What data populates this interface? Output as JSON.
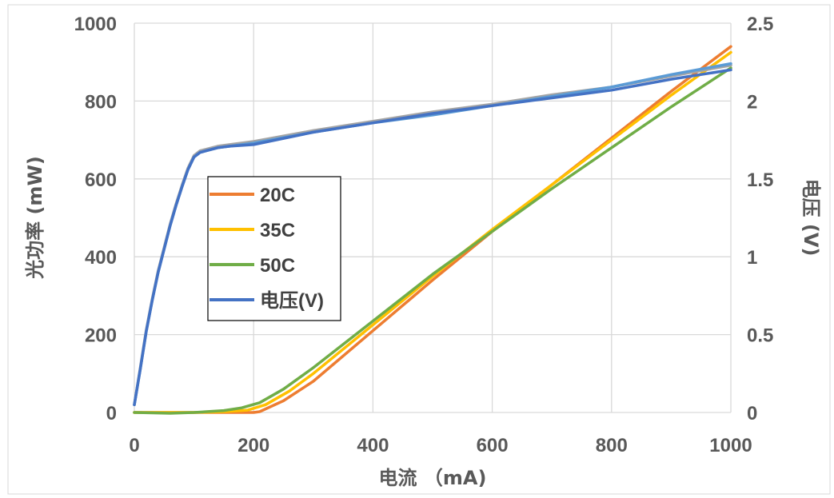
{
  "chart_data": {
    "type": "line",
    "xlabel": "电流 （mA)",
    "ylabel": "光功率 (mW)",
    "y2label": "电压 (V)",
    "xlim": [
      0,
      1000
    ],
    "ylim": [
      0,
      1000
    ],
    "y2lim": [
      0,
      2.5
    ],
    "xticks": [
      "0",
      "200",
      "400",
      "600",
      "800",
      "1000"
    ],
    "yticks": [
      "0",
      "200",
      "400",
      "600",
      "800",
      "1000"
    ],
    "y2ticks": [
      "0",
      "0.5",
      "1",
      "1.5",
      "2",
      "2.5"
    ],
    "grid": true,
    "legend_position": "center-left",
    "series": [
      {
        "name": "20C",
        "axis": "left",
        "color": "#ED7D31",
        "x": [
          0,
          200,
          210,
          250,
          300,
          400,
          500,
          600,
          700,
          800,
          900,
          1000
        ],
        "y": [
          0,
          0,
          2,
          30,
          80,
          210,
          340,
          465,
          585,
          705,
          825,
          940
        ]
      },
      {
        "name": "35C",
        "axis": "left",
        "color": "#FFC000",
        "x": [
          0,
          100,
          150,
          190,
          220,
          260,
          300,
          400,
          500,
          600,
          700,
          800,
          900,
          1000
        ],
        "y": [
          0,
          0,
          2,
          6,
          20,
          55,
          100,
          225,
          350,
          470,
          585,
          700,
          815,
          925
        ]
      },
      {
        "name": "50C",
        "axis": "left",
        "color": "#70AD47",
        "x": [
          0,
          60,
          100,
          150,
          180,
          210,
          250,
          300,
          400,
          500,
          600,
          700,
          800,
          900,
          1000
        ],
        "y": [
          0,
          -2,
          0,
          5,
          12,
          25,
          60,
          115,
          235,
          355,
          465,
          575,
          680,
          785,
          885
        ]
      },
      {
        "name": "电压(V)",
        "axis": "right",
        "color": "#4472C4",
        "x": [
          0,
          10,
          20,
          30,
          40,
          50,
          60,
          70,
          80,
          90,
          100,
          110,
          120,
          140,
          160,
          200,
          300,
          400,
          500,
          600,
          700,
          800,
          900,
          1000
        ],
        "y": [
          0.05,
          0.28,
          0.52,
          0.72,
          0.9,
          1.05,
          1.2,
          1.33,
          1.45,
          1.56,
          1.64,
          1.67,
          1.68,
          1.7,
          1.71,
          1.72,
          1.8,
          1.86,
          1.92,
          1.97,
          2.02,
          2.07,
          2.14,
          2.2
        ]
      }
    ],
    "unlabeled_series": [
      {
        "axis": "right",
        "color": "#A5A5A5",
        "x": [
          0,
          10,
          20,
          30,
          40,
          50,
          60,
          70,
          80,
          90,
          100,
          110,
          120,
          140,
          160,
          200,
          300,
          400,
          500,
          600,
          700,
          800,
          900,
          1000
        ],
        "y": [
          0.05,
          0.29,
          0.53,
          0.73,
          0.91,
          1.06,
          1.21,
          1.34,
          1.46,
          1.57,
          1.65,
          1.68,
          1.69,
          1.71,
          1.72,
          1.74,
          1.81,
          1.87,
          1.93,
          1.98,
          2.04,
          2.09,
          2.16,
          2.23
        ]
      },
      {
        "axis": "right",
        "color": "#5B9BD5",
        "x": [
          0,
          10,
          20,
          30,
          40,
          50,
          60,
          70,
          80,
          90,
          100,
          110,
          120,
          140,
          160,
          200,
          300,
          400,
          500,
          600,
          700,
          800,
          900,
          1000
        ],
        "y": [
          0.05,
          0.28,
          0.52,
          0.72,
          0.9,
          1.05,
          1.2,
          1.33,
          1.45,
          1.56,
          1.64,
          1.67,
          1.68,
          1.7,
          1.71,
          1.73,
          1.8,
          1.86,
          1.91,
          1.97,
          2.03,
          2.09,
          2.17,
          2.24
        ]
      }
    ]
  }
}
